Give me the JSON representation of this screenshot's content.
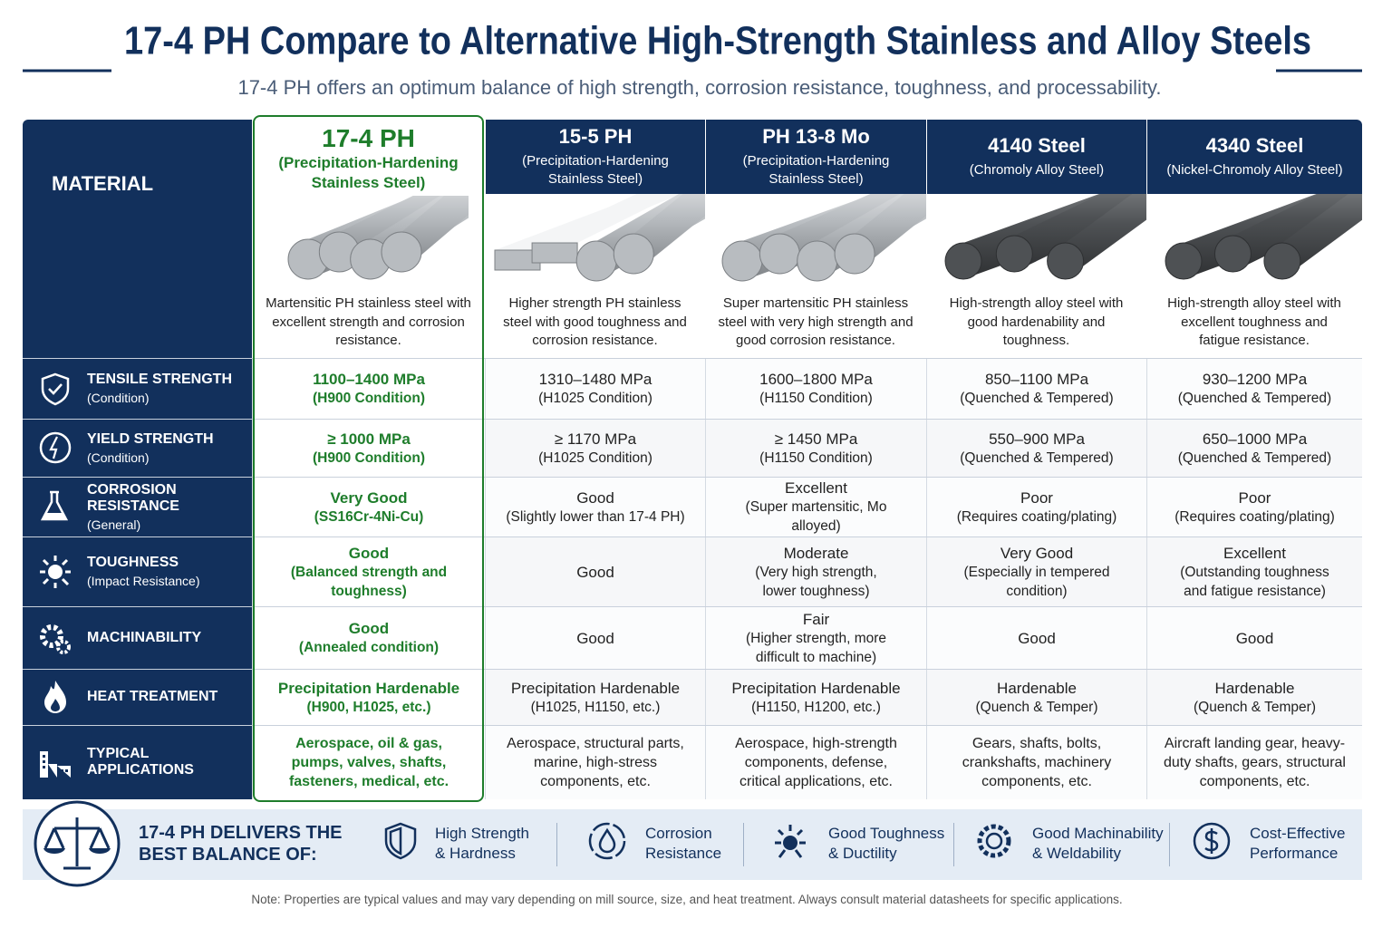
{
  "header": {
    "title": "17-4 PH Compare to Alternative High-Strength Stainless and Alloy Steels",
    "subtitle": "17-4 PH offers an optimum balance of high strength, corrosion resistance, toughness, and processability."
  },
  "table": {
    "corner": "MATERIAL",
    "materials": [
      {
        "name": "17-4 PH",
        "class": "(Precipitation-Hardening Stainless Steel)",
        "description": "Martensitic PH stainless steel with excellent strength and corrosion resistance."
      },
      {
        "name": "15-5 PH",
        "class": "(Precipitation-Hardening Stainless Steel)",
        "description": "Higher strength PH stainless steel with good toughness and corrosion resistance."
      },
      {
        "name": "PH 13-8 Mo",
        "class": "(Precipitation-Hardening Stainless Steel)",
        "description": "Super martensitic PH stainless steel with very high strength and good corrosion resistance."
      },
      {
        "name": "4140 Steel",
        "class": "(Chromoly Alloy Steel)",
        "description": "High-strength alloy steel with good hardenability and toughness."
      },
      {
        "name": "4340 Steel",
        "class": "(Nickel-Chromoly Alloy Steel)",
        "description": "High-strength alloy steel with excellent toughness and fatigue resistance."
      }
    ],
    "rows": [
      {
        "property": "TENSILE STRENGTH",
        "qualifier": "(Condition)",
        "cells": [
          {
            "value": "1100–1400 MPa",
            "note": "(H900 Condition)"
          },
          {
            "value": "1310–1480 MPa",
            "note": "(H1025 Condition)"
          },
          {
            "value": "1600–1800 MPa",
            "note": "(H1150 Condition)"
          },
          {
            "value": "850–1100 MPa",
            "note": "(Quenched & Tempered)"
          },
          {
            "value": "930–1200 MPa",
            "note": "(Quenched & Tempered)"
          }
        ]
      },
      {
        "property": "YIELD STRENGTH",
        "qualifier": "(Condition)",
        "cells": [
          {
            "value": "≥ 1000 MPa",
            "note": "(H900 Condition)"
          },
          {
            "value": "≥ 1170 MPa",
            "note": "(H1025 Condition)"
          },
          {
            "value": "≥ 1450 MPa",
            "note": "(H1150 Condition)"
          },
          {
            "value": "550–900 MPa",
            "note": "(Quenched & Tempered)"
          },
          {
            "value": "650–1000 MPa",
            "note": "(Quenched & Tempered)"
          }
        ]
      },
      {
        "property": "CORROSION RESISTANCE",
        "qualifier": "(General)",
        "cells": [
          {
            "value": "Very Good",
            "note": "(SS16Cr-4Ni-Cu)"
          },
          {
            "value": "Good",
            "note": "(Slightly lower than 17-4 PH)"
          },
          {
            "value": "Excellent",
            "note": "(Super martensitic, Mo alloyed)"
          },
          {
            "value": "Poor",
            "note": "(Requires coating/plating)"
          },
          {
            "value": "Poor",
            "note": "(Requires coating/plating)"
          }
        ]
      },
      {
        "property": "TOUGHNESS",
        "qualifier": "(Impact Resistance)",
        "cells": [
          {
            "value": "Good",
            "note": "(Balanced strength and toughness)"
          },
          {
            "value": "Good"
          },
          {
            "value": "Moderate",
            "note": "(Very high strength, lower toughness)"
          },
          {
            "value": "Very Good",
            "note": "(Especially in tempered condition)"
          },
          {
            "value": "Excellent",
            "note": "(Outstanding toughness and fatigue resistance)"
          }
        ]
      },
      {
        "property": "MACHINABILITY",
        "cells": [
          {
            "value": "Good",
            "note": "(Annealed condition)"
          },
          {
            "value": "Good"
          },
          {
            "value": "Fair",
            "note": "(Higher strength, more difficult to machine)"
          },
          {
            "value": "Good"
          },
          {
            "value": "Good"
          }
        ]
      },
      {
        "property": "HEAT TREATMENT",
        "cells": [
          {
            "value": "Precipitation Hardenable",
            "note": "(H900, H1025, etc.)"
          },
          {
            "value": "Precipitation Hardenable",
            "note": "(H1025, H1150, etc.)"
          },
          {
            "value": "Precipitation Hardenable",
            "note": "(H1150, H1200, etc.)"
          },
          {
            "value": "Hardenable",
            "note": "(Quench & Temper)"
          },
          {
            "value": "Hardenable",
            "note": "(Quench & Temper)"
          }
        ]
      },
      {
        "property": "TYPICAL APPLICATIONS",
        "cells": [
          {
            "value": "Aerospace, oil & gas, pumps, valves, shafts, fasteners, medical, etc."
          },
          {
            "value": "Aerospace, structural parts, marine, high-stress components, etc."
          },
          {
            "value": "Aerospace, high-strength components, defense, critical applications, etc."
          },
          {
            "value": "Gears, shafts, bolts, crankshafts, machinery components, etc."
          },
          {
            "value": "Aircraft landing gear, heavy-duty shafts, gears, structural components, etc."
          }
        ]
      }
    ]
  },
  "banner": {
    "heading": [
      "17-4 PH DELIVERS THE",
      "BEST BALANCE OF:"
    ],
    "items": [
      [
        "High Strength",
        "& Hardness"
      ],
      [
        "Corrosion",
        "Resistance"
      ],
      [
        "Good Toughness",
        "& Ductility"
      ],
      [
        "Good Machinability",
        "& Weldability"
      ],
      [
        "Cost-Effective",
        "Performance"
      ]
    ]
  },
  "note": "Note: Properties are typical values and may vary depending on mill source, size, and heat treatment. Always consult material datasheets for specific applications."
}
